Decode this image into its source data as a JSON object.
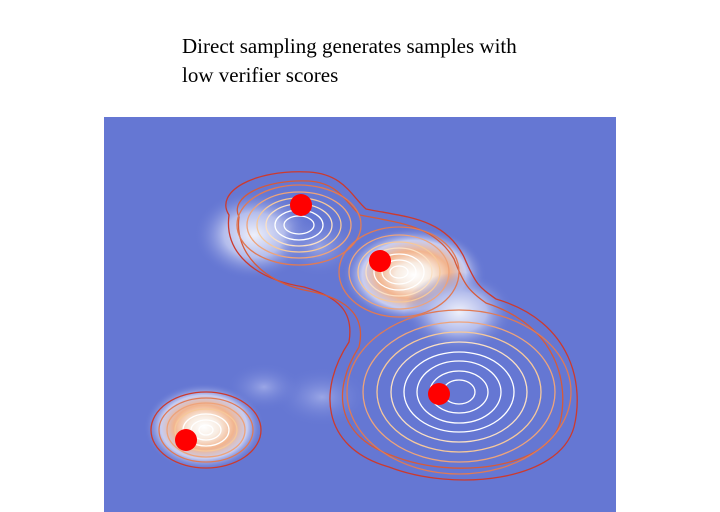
{
  "caption": {
    "line1": "Direct sampling generates samples with",
    "line2": "low verifier scores"
  },
  "colors": {
    "background": "#6577d3",
    "sample_marker": "#ff0000",
    "contour_outer": "#cc3a2e",
    "contour_mid": "#e8906a",
    "contour_inner": "#f6c89a",
    "contour_core": "#ffffff"
  }
}
